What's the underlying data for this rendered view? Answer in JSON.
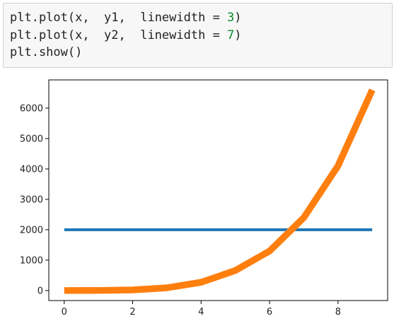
{
  "code_cell": {
    "lines": [
      {
        "prefix": "plt.plot(x,  y1,  linewidth = ",
        "number": "3",
        "suffix": ")"
      },
      {
        "prefix": "plt.plot(x,  y2,  linewidth = ",
        "number": "7",
        "suffix": ")"
      },
      {
        "prefix": "plt.show()",
        "number": "",
        "suffix": ""
      }
    ],
    "number_color": "#0a8a2a"
  },
  "chart_data": {
    "type": "line",
    "title": "",
    "xlabel": "",
    "ylabel": "",
    "xlim": [
      -0.45,
      9.45
    ],
    "ylim": [
      -330,
      6930
    ],
    "x_ticks": [
      0,
      2,
      4,
      6,
      8
    ],
    "x_tick_labels": [
      "0",
      "2",
      "4",
      "6",
      "8"
    ],
    "y_ticks": [
      0,
      1000,
      2000,
      3000,
      4000,
      5000,
      6000
    ],
    "y_tick_labels": [
      "0",
      "1000",
      "2000",
      "3000",
      "4000",
      "5000",
      "6000"
    ],
    "grid": false,
    "legend": "none",
    "series": [
      {
        "name": "y1",
        "color": "#1f77b4",
        "linewidth": 3,
        "x": [
          0,
          1,
          2,
          3,
          4,
          5,
          6,
          7,
          8,
          9
        ],
        "values": [
          2000,
          2000,
          2000,
          2000,
          2000,
          2000,
          2000,
          2000,
          2000,
          2000
        ]
      },
      {
        "name": "y2",
        "color": "#ff7f0e",
        "linewidth": 7,
        "x": [
          0,
          1,
          2,
          3,
          4,
          5,
          6,
          7,
          8,
          9
        ],
        "values": [
          0,
          3,
          20,
          90,
          270,
          660,
          1300,
          2400,
          4100,
          6600
        ]
      }
    ]
  }
}
